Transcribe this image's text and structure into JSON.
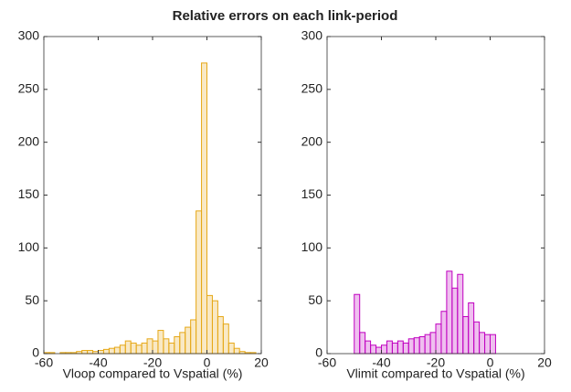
{
  "title": "Relative errors on each link-period",
  "chart_data": [
    {
      "type": "histogram",
      "color": "#e6a817",
      "xlabel": "Vloop compared to Vspatial (%)",
      "bins": [
        -60,
        -58,
        -56,
        -54,
        -52,
        -50,
        -48,
        -46,
        -44,
        -42,
        -40,
        -38,
        -36,
        -34,
        -32,
        -30,
        -28,
        -26,
        -24,
        -22,
        -20,
        -18,
        -16,
        -14,
        -12,
        -10,
        -8,
        -6,
        -4,
        -2,
        0,
        2,
        4,
        6,
        8,
        10,
        12,
        14,
        16,
        18,
        20
      ],
      "values": [
        1,
        1,
        0,
        1,
        1,
        1,
        2,
        3,
        3,
        2,
        3,
        4,
        5,
        6,
        8,
        12,
        10,
        8,
        10,
        14,
        12,
        22,
        14,
        10,
        16,
        20,
        25,
        32,
        135,
        275,
        55,
        50,
        35,
        28,
        10,
        5,
        2,
        1,
        1,
        0
      ],
      "xlim": [
        -60,
        20
      ],
      "xticks": [
        -60,
        -40,
        -20,
        0,
        20
      ],
      "ylim": [
        0,
        300
      ],
      "yticks": [
        0,
        50,
        100,
        150,
        200,
        250,
        300
      ]
    },
    {
      "type": "histogram",
      "color": "#c000c0",
      "xlabel": "Vlimit compared to Vspatial (%)",
      "bins": [
        -50,
        -48,
        -46,
        -44,
        -42,
        -40,
        -38,
        -36,
        -34,
        -32,
        -30,
        -28,
        -26,
        -24,
        -22,
        -20,
        -18,
        -16,
        -14,
        -12,
        -10,
        -8,
        -6,
        -4,
        -2,
        0,
        2
      ],
      "values": [
        56,
        20,
        12,
        8,
        6,
        8,
        12,
        10,
        12,
        10,
        14,
        15,
        16,
        18,
        20,
        28,
        40,
        78,
        62,
        75,
        35,
        48,
        30,
        20,
        18,
        18
      ],
      "xlim": [
        -60,
        20
      ],
      "xticks": [
        -60,
        -40,
        -20,
        0,
        20
      ],
      "ylim": [
        0,
        300
      ],
      "yticks": [
        0,
        50,
        100,
        150,
        200,
        250,
        300
      ]
    }
  ]
}
